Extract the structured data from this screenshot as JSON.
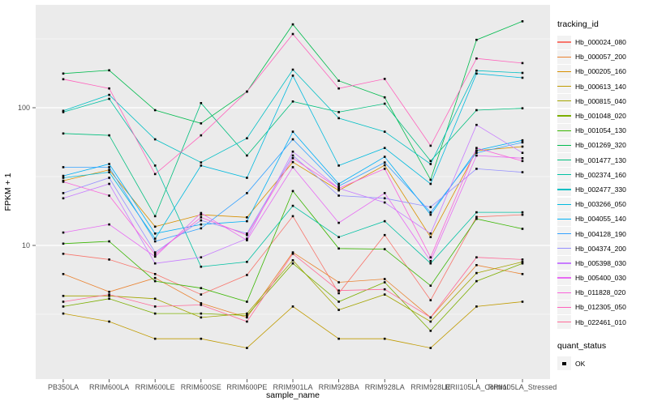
{
  "chart_data": {
    "type": "line",
    "title": "",
    "xlabel": "sample_name",
    "ylabel": "FPKM + 1",
    "y_scale": "log10",
    "y_ticks": [
      100,
      10
    ],
    "y_minor": [
      3.162,
      31.62,
      316.2
    ],
    "ylim": [
      1.07,
      558
    ],
    "grid": "on",
    "panel_bg": "#EBEBEB",
    "grid_color": "#FFFFFF",
    "point_color": "#000000",
    "axis_text_color": "#4D4D4D",
    "categories": [
      "PB350LA",
      "RRIM600LA",
      "RRIM600LE",
      "RRIM600SE",
      "RRIM600PE",
      "RRIM901LA",
      "RRIM928BA",
      "RRIM928LA",
      "RRIM928LE",
      "RRII105LA_Control",
      "RRII105LA_Stressed"
    ],
    "legend": {
      "title": "tracking_id",
      "position": "right"
    },
    "quant_legend": {
      "title": "quant_status",
      "items": [
        {
          "label": "OK",
          "marker": "black-square"
        }
      ]
    },
    "series": [
      {
        "name": "Hb_000024_080",
        "color": "#F8766D",
        "values": [
          8.7,
          7.9,
          6.2,
          4.4,
          6.1,
          16.3,
          4.5,
          11.9,
          4.0,
          16.1,
          16.7
        ]
      },
      {
        "name": "Hb_000057_200",
        "color": "#EA8331",
        "values": [
          6.2,
          4.6,
          5.8,
          3.8,
          3.0,
          8.9,
          5.4,
          5.7,
          3.0,
          7.2,
          6.2
        ]
      },
      {
        "name": "Hb_000205_160",
        "color": "#D89000",
        "values": [
          29.5,
          35.4,
          13.7,
          16.7,
          16.0,
          40.3,
          25.1,
          38.2,
          11.5,
          48.8,
          52.2
        ]
      },
      {
        "name": "Hb_000613_140",
        "color": "#C09B00",
        "values": [
          3.2,
          2.8,
          2.1,
          2.1,
          1.8,
          3.6,
          2.1,
          2.1,
          1.8,
          3.6,
          3.9
        ]
      },
      {
        "name": "Hb_000815_040",
        "color": "#A3A500",
        "values": [
          4.3,
          4.3,
          4.1,
          3.0,
          3.2,
          7.8,
          3.4,
          4.4,
          2.8,
          6.3,
          7.6
        ]
      },
      {
        "name": "Hb_001048_020",
        "color": "#7CAE00",
        "values": [
          3.6,
          4.1,
          3.2,
          3.2,
          3.1,
          7.4,
          3.9,
          5.4,
          2.4,
          5.5,
          7.4
        ]
      },
      {
        "name": "Hb_001054_130",
        "color": "#39B600",
        "values": [
          10.3,
          10.7,
          5.5,
          4.9,
          3.9,
          24.8,
          9.5,
          9.4,
          5.1,
          15.6,
          13.2
        ]
      },
      {
        "name": "Hb_001269_320",
        "color": "#00BB4E",
        "values": [
          177,
          187,
          96,
          77,
          131,
          403,
          157,
          119,
          30,
          311,
          424
        ]
      },
      {
        "name": "Hb_001477_130",
        "color": "#00BF7D",
        "values": [
          65,
          63,
          16.3,
          108,
          45,
          111,
          93,
          107,
          41,
          96,
          99
        ]
      },
      {
        "name": "Hb_002374_160",
        "color": "#00C1A3",
        "values": [
          93,
          116,
          38,
          7.0,
          7.6,
          19.4,
          11.5,
          15.0,
          7.4,
          17.4,
          17.4
        ]
      },
      {
        "name": "Hb_002477_330",
        "color": "#00BFC4",
        "values": [
          95,
          124,
          59,
          40,
          60,
          189,
          84,
          67,
          39,
          186,
          179
        ]
      },
      {
        "name": "Hb_003266_050",
        "color": "#00BADE",
        "values": [
          31,
          34,
          11.2,
          38,
          31,
          171,
          38,
          51,
          28,
          177,
          165
        ]
      },
      {
        "name": "Hb_004055_140",
        "color": "#00B0F6",
        "values": [
          32,
          39,
          12.2,
          14.2,
          15.0,
          67,
          28,
          44,
          16.7,
          49,
          58
        ]
      },
      {
        "name": "Hb_004128_190",
        "color": "#35A2FF",
        "values": [
          37,
          37,
          10.7,
          13.3,
          24,
          59,
          27,
          40,
          17.4,
          47,
          56
        ]
      },
      {
        "name": "Hb_004374_200",
        "color": "#9590FF",
        "values": [
          24,
          31,
          8.9,
          15.2,
          12.2,
          45,
          23,
          22,
          19,
          36,
          34
        ]
      },
      {
        "name": "Hb_005398_030",
        "color": "#C77CFF",
        "values": [
          22,
          28,
          7.4,
          8.2,
          11.2,
          48,
          26,
          20.5,
          12.2,
          75,
          47
        ]
      },
      {
        "name": "Hb_005400_030",
        "color": "#E76BF3",
        "values": [
          12.4,
          14.2,
          8.3,
          17.2,
          10.9,
          37,
          14.6,
          24,
          7.7,
          45,
          43
        ]
      },
      {
        "name": "Hb_011828_020",
        "color": "#FA62DB",
        "values": [
          29,
          23,
          8.6,
          16.0,
          11.9,
          43,
          26,
          36,
          8.2,
          51,
          41
        ]
      },
      {
        "name": "Hb_012305_050",
        "color": "#FF62BC",
        "values": [
          161,
          138,
          33,
          63,
          131,
          343,
          138,
          162,
          53,
          228,
          211
        ]
      },
      {
        "name": "Hb_022461_010",
        "color": "#FF6A98",
        "values": [
          3.9,
          4.4,
          3.6,
          3.7,
          2.8,
          8.7,
          4.7,
          4.8,
          3.0,
          8.2,
          7.9
        ]
      }
    ]
  }
}
